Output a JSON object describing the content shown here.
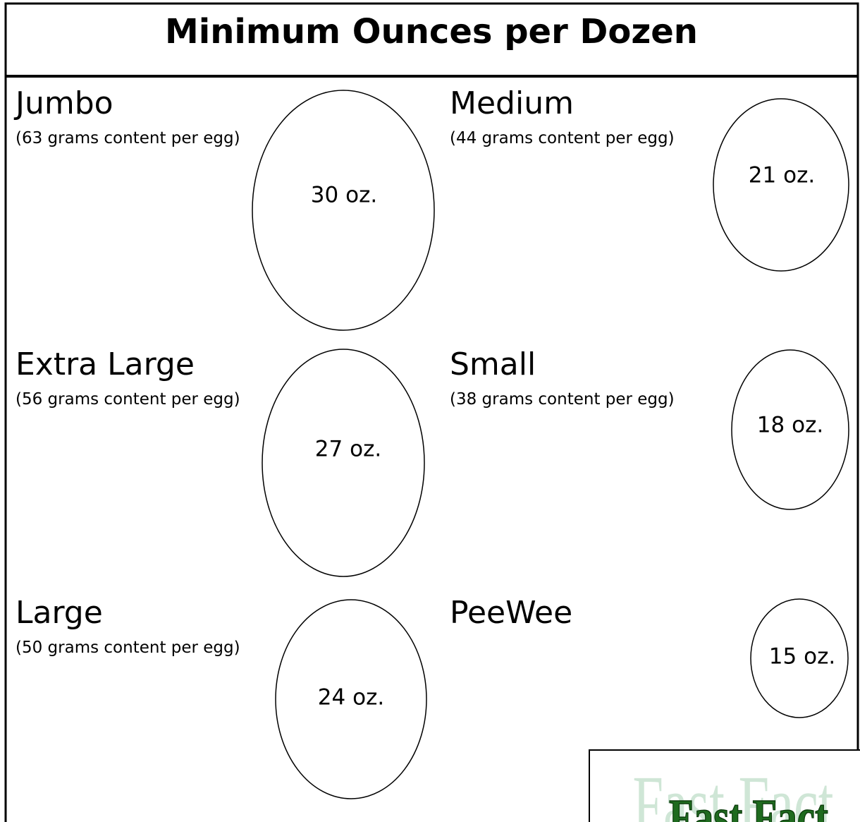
{
  "title": "Minimum Ounces per Dozen",
  "sizes": [
    {
      "name": "Jumbo",
      "note": "(63 grams content per egg)",
      "ounces": "30 oz."
    },
    {
      "name": "Medium",
      "note": "(44 grams content per egg)",
      "ounces": "21 oz."
    },
    {
      "name": "Extra Large",
      "note": "(56 grams content per egg)",
      "ounces": "27 oz."
    },
    {
      "name": "Small",
      "note": "(38 grams content per egg)",
      "ounces": "18 oz."
    },
    {
      "name": "Large",
      "note": "(50 grams content per egg)",
      "ounces": "24 oz."
    },
    {
      "name": "PeeWee",
      "ounces": "15 oz."
    }
  ],
  "badge": {
    "text": "Fast Fact"
  }
}
